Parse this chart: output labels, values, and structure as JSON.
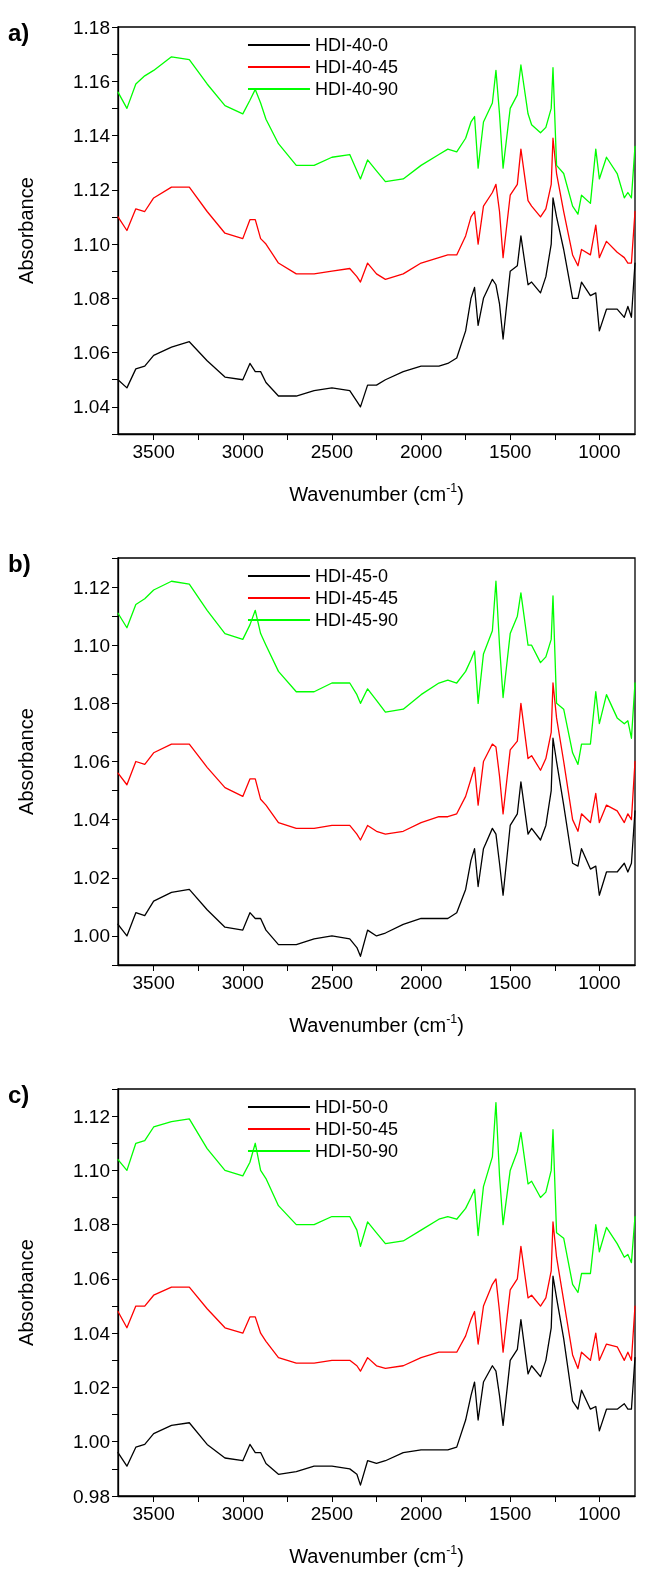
{
  "chart_data": [
    {
      "type": "line",
      "annotations": [
        "a)"
      ],
      "xlabel": "Wavenumber (cm$^{-1}$)",
      "ylabel": "Absorbance",
      "legend": "top",
      "grid": false,
      "marker": "none",
      "line_style": "solid",
      "xlim": [
        3700,
        800
      ],
      "xticks": [
        3500,
        {
          "value": 3250,
          "label": null
        },
        3000,
        {
          "value": 2750,
          "label": null
        },
        2500,
        {
          "value": 2250,
          "label": null
        },
        2000,
        {
          "value": 1750,
          "label": null
        },
        1500,
        {
          "value": 1250,
          "label": null
        },
        1000
      ],
      "ylim": [
        1.03,
        1.18
      ],
      "yticks": [
        {
          "value": 1.03,
          "label": null
        },
        {
          "value": 1.04,
          "label": "1.04"
        },
        {
          "value": 1.05,
          "label": null
        },
        {
          "value": 1.06,
          "label": "1.06"
        },
        {
          "value": 1.07,
          "label": null
        },
        {
          "value": 1.08,
          "label": "1.08"
        },
        {
          "value": 1.09,
          "label": null
        },
        {
          "value": 1.1,
          "label": "1.10"
        },
        {
          "value": 1.11,
          "label": null
        },
        {
          "value": 1.12,
          "label": "1.12"
        },
        {
          "value": 1.13,
          "label": null
        },
        {
          "value": 1.14,
          "label": "1.14"
        },
        {
          "value": 1.15,
          "label": null
        },
        {
          "value": 1.16,
          "label": "1.16"
        },
        {
          "value": 1.17,
          "label": null
        },
        {
          "value": 1.18,
          "label": "1.18"
        }
      ],
      "x": [
        3700,
        3650,
        3600,
        3550,
        3500,
        3400,
        3300,
        3200,
        3100,
        3000,
        2960,
        2930,
        2900,
        2870,
        2800,
        2700,
        2600,
        2500,
        2400,
        2360,
        2340,
        2300,
        2250,
        2200,
        2100,
        2000,
        1900,
        1850,
        1800,
        1750,
        1720,
        1700,
        1680,
        1650,
        1600,
        1580,
        1560,
        1540,
        1500,
        1460,
        1440,
        1400,
        1380,
        1330,
        1300,
        1270,
        1260,
        1240,
        1200,
        1150,
        1120,
        1100,
        1050,
        1020,
        1000,
        960,
        900,
        860,
        840,
        820,
        800
      ],
      "series": [
        {
          "name": "HDI-40-0",
          "color": "#000000",
          "values": [
            1.05,
            1.047,
            1.054,
            1.055,
            1.059,
            1.062,
            1.064,
            1.057,
            1.051,
            1.05,
            1.056,
            1.053,
            1.053,
            1.049,
            1.044,
            1.044,
            1.046,
            1.047,
            1.046,
            1.042,
            1.04,
            1.048,
            1.048,
            1.05,
            1.053,
            1.055,
            1.055,
            1.056,
            1.058,
            1.068,
            1.08,
            1.084,
            1.07,
            1.08,
            1.087,
            1.085,
            1.078,
            1.065,
            1.09,
            1.092,
            1.103,
            1.085,
            1.086,
            1.082,
            1.088,
            1.1,
            1.117,
            1.11,
            1.098,
            1.08,
            1.08,
            1.086,
            1.081,
            1.082,
            1.068,
            1.076,
            1.076,
            1.073,
            1.077,
            1.073,
            1.093
          ]
        },
        {
          "name": "HDI-40-45",
          "color": "#ff0000",
          "values": [
            1.11,
            1.105,
            1.113,
            1.112,
            1.117,
            1.121,
            1.121,
            1.112,
            1.104,
            1.102,
            1.109,
            1.109,
            1.102,
            1.1,
            1.093,
            1.089,
            1.089,
            1.09,
            1.091,
            1.088,
            1.086,
            1.093,
            1.089,
            1.087,
            1.089,
            1.093,
            1.095,
            1.096,
            1.096,
            1.103,
            1.11,
            1.112,
            1.1,
            1.114,
            1.119,
            1.122,
            1.112,
            1.095,
            1.118,
            1.122,
            1.135,
            1.116,
            1.114,
            1.11,
            1.113,
            1.122,
            1.139,
            1.126,
            1.112,
            1.096,
            1.092,
            1.098,
            1.096,
            1.107,
            1.095,
            1.101,
            1.097,
            1.095,
            1.093,
            1.093,
            1.112
          ]
        },
        {
          "name": "HDI-40-90",
          "color": "#00ff00",
          "values": [
            1.156,
            1.15,
            1.159,
            1.162,
            1.164,
            1.169,
            1.168,
            1.159,
            1.151,
            1.148,
            1.153,
            1.157,
            1.152,
            1.146,
            1.137,
            1.129,
            1.129,
            1.132,
            1.133,
            1.127,
            1.124,
            1.131,
            1.127,
            1.123,
            1.124,
            1.129,
            1.133,
            1.135,
            1.134,
            1.139,
            1.145,
            1.147,
            1.128,
            1.145,
            1.152,
            1.164,
            1.148,
            1.128,
            1.15,
            1.155,
            1.166,
            1.148,
            1.144,
            1.141,
            1.143,
            1.15,
            1.165,
            1.129,
            1.126,
            1.114,
            1.111,
            1.118,
            1.115,
            1.135,
            1.124,
            1.132,
            1.126,
            1.117,
            1.119,
            1.117,
            1.136
          ]
        }
      ]
    },
    {
      "type": "line",
      "annotations": [
        "b)"
      ],
      "xlabel": "Wavenumber (cm$^{-1}$)",
      "ylabel": "Absorbance",
      "legend": "top",
      "grid": false,
      "marker": "none",
      "line_style": "solid",
      "xlim": [
        3700,
        800
      ],
      "xticks": [
        3500,
        {
          "value": 3250,
          "label": null
        },
        3000,
        {
          "value": 2750,
          "label": null
        },
        2500,
        {
          "value": 2250,
          "label": null
        },
        2000,
        {
          "value": 1750,
          "label": null
        },
        1500,
        {
          "value": 1250,
          "label": null
        },
        1000
      ],
      "ylim": [
        0.99,
        1.13
      ],
      "yticks": [
        {
          "value": 0.99,
          "label": null
        },
        {
          "value": 1.0,
          "label": "1.00"
        },
        {
          "value": 1.01,
          "label": null
        },
        {
          "value": 1.02,
          "label": "1.02"
        },
        {
          "value": 1.03,
          "label": null
        },
        {
          "value": 1.04,
          "label": "1.04"
        },
        {
          "value": 1.05,
          "label": null
        },
        {
          "value": 1.06,
          "label": "1.06"
        },
        {
          "value": 1.07,
          "label": null
        },
        {
          "value": 1.08,
          "label": "1.08"
        },
        {
          "value": 1.09,
          "label": null
        },
        {
          "value": 1.1,
          "label": "1.10"
        },
        {
          "value": 1.11,
          "label": null
        },
        {
          "value": 1.12,
          "label": "1.12"
        },
        {
          "value": 1.13,
          "label": null
        }
      ],
      "x": [
        3700,
        3650,
        3600,
        3550,
        3500,
        3400,
        3300,
        3200,
        3100,
        3000,
        2960,
        2930,
        2900,
        2870,
        2800,
        2700,
        2600,
        2500,
        2400,
        2360,
        2340,
        2300,
        2250,
        2200,
        2100,
        2000,
        1900,
        1850,
        1800,
        1750,
        1720,
        1700,
        1680,
        1650,
        1600,
        1580,
        1560,
        1540,
        1500,
        1460,
        1440,
        1400,
        1380,
        1330,
        1300,
        1270,
        1260,
        1240,
        1200,
        1150,
        1120,
        1100,
        1050,
        1020,
        1000,
        960,
        900,
        860,
        840,
        820,
        800
      ],
      "series": [
        {
          "name": "HDI-45-0",
          "color": "#000000",
          "values": [
            1.004,
            1.0,
            1.008,
            1.007,
            1.012,
            1.015,
            1.016,
            1.009,
            1.003,
            1.002,
            1.008,
            1.006,
            1.006,
            1.002,
            0.997,
            0.997,
            0.999,
            1.0,
            0.999,
            0.996,
            0.993,
            1.002,
            1.0,
            1.001,
            1.004,
            1.006,
            1.006,
            1.006,
            1.008,
            1.016,
            1.026,
            1.03,
            1.017,
            1.03,
            1.037,
            1.035,
            1.025,
            1.014,
            1.038,
            1.042,
            1.053,
            1.035,
            1.037,
            1.033,
            1.038,
            1.05,
            1.068,
            1.06,
            1.045,
            1.025,
            1.024,
            1.03,
            1.023,
            1.024,
            1.014,
            1.022,
            1.022,
            1.025,
            1.022,
            1.025,
            1.043
          ]
        },
        {
          "name": "HDI-45-45",
          "color": "#ff0000",
          "values": [
            1.056,
            1.052,
            1.06,
            1.059,
            1.063,
            1.066,
            1.066,
            1.058,
            1.051,
            1.048,
            1.054,
            1.054,
            1.047,
            1.045,
            1.039,
            1.037,
            1.037,
            1.038,
            1.038,
            1.035,
            1.033,
            1.038,
            1.036,
            1.035,
            1.036,
            1.039,
            1.041,
            1.041,
            1.042,
            1.048,
            1.054,
            1.058,
            1.045,
            1.06,
            1.066,
            1.065,
            1.055,
            1.042,
            1.064,
            1.067,
            1.08,
            1.061,
            1.062,
            1.057,
            1.061,
            1.07,
            1.087,
            1.075,
            1.06,
            1.04,
            1.036,
            1.042,
            1.039,
            1.049,
            1.039,
            1.045,
            1.043,
            1.039,
            1.042,
            1.04,
            1.06
          ]
        },
        {
          "name": "HDI-45-90",
          "color": "#00ff00",
          "values": [
            1.111,
            1.106,
            1.114,
            1.116,
            1.119,
            1.122,
            1.121,
            1.112,
            1.104,
            1.102,
            1.107,
            1.112,
            1.104,
            1.1,
            1.091,
            1.084,
            1.084,
            1.087,
            1.087,
            1.083,
            1.08,
            1.085,
            1.081,
            1.077,
            1.078,
            1.083,
            1.087,
            1.088,
            1.087,
            1.091,
            1.095,
            1.098,
            1.08,
            1.097,
            1.105,
            1.122,
            1.1,
            1.082,
            1.104,
            1.11,
            1.118,
            1.1,
            1.1,
            1.094,
            1.096,
            1.102,
            1.117,
            1.08,
            1.078,
            1.063,
            1.059,
            1.066,
            1.066,
            1.084,
            1.073,
            1.083,
            1.075,
            1.073,
            1.074,
            1.068,
            1.087
          ]
        }
      ]
    },
    {
      "type": "line",
      "annotations": [
        "c)"
      ],
      "xlabel": "Wavenumber (cm$^{-1}$)",
      "ylabel": "Absorbance",
      "legend": "top",
      "grid": false,
      "marker": "none",
      "line_style": "solid",
      "xlim": [
        3700,
        800
      ],
      "xticks": [
        3500,
        {
          "value": 3250,
          "label": null
        },
        3000,
        {
          "value": 2750,
          "label": null
        },
        2500,
        {
          "value": 2250,
          "label": null
        },
        2000,
        {
          "value": 1750,
          "label": null
        },
        1500,
        {
          "value": 1250,
          "label": null
        },
        1000
      ],
      "ylim": [
        0.98,
        1.13
      ],
      "yticks": [
        {
          "value": 0.98,
          "label": "0.98"
        },
        {
          "value": 0.99,
          "label": null
        },
        {
          "value": 1.0,
          "label": "1.00"
        },
        {
          "value": 1.01,
          "label": null
        },
        {
          "value": 1.02,
          "label": "1.02"
        },
        {
          "value": 1.03,
          "label": null
        },
        {
          "value": 1.04,
          "label": "1.04"
        },
        {
          "value": 1.05,
          "label": null
        },
        {
          "value": 1.06,
          "label": "1.06"
        },
        {
          "value": 1.07,
          "label": null
        },
        {
          "value": 1.08,
          "label": "1.08"
        },
        {
          "value": 1.09,
          "label": null
        },
        {
          "value": 1.1,
          "label": "1.10"
        },
        {
          "value": 1.11,
          "label": null
        },
        {
          "value": 1.12,
          "label": "1.12"
        },
        {
          "value": 1.13,
          "label": null
        }
      ],
      "x": [
        3700,
        3650,
        3600,
        3550,
        3500,
        3400,
        3300,
        3200,
        3100,
        3000,
        2960,
        2930,
        2900,
        2870,
        2800,
        2700,
        2600,
        2500,
        2400,
        2360,
        2340,
        2300,
        2250,
        2200,
        2100,
        2000,
        1900,
        1850,
        1800,
        1750,
        1720,
        1700,
        1680,
        1650,
        1600,
        1580,
        1560,
        1540,
        1500,
        1460,
        1440,
        1400,
        1380,
        1330,
        1300,
        1270,
        1260,
        1240,
        1200,
        1150,
        1120,
        1100,
        1050,
        1020,
        1000,
        960,
        900,
        860,
        840,
        820,
        800
      ],
      "series": [
        {
          "name": "HDI-50-0",
          "color": "#000000",
          "values": [
            0.996,
            0.991,
            0.998,
            0.999,
            1.003,
            1.006,
            1.007,
            0.999,
            0.994,
            0.993,
            0.999,
            0.996,
            0.996,
            0.992,
            0.988,
            0.989,
            0.991,
            0.991,
            0.99,
            0.988,
            0.984,
            0.993,
            0.992,
            0.993,
            0.996,
            0.997,
            0.997,
            0.997,
            0.998,
            1.008,
            1.017,
            1.022,
            1.008,
            1.022,
            1.028,
            1.026,
            1.017,
            1.006,
            1.03,
            1.034,
            1.045,
            1.025,
            1.028,
            1.024,
            1.03,
            1.042,
            1.061,
            1.053,
            1.038,
            1.015,
            1.012,
            1.019,
            1.012,
            1.013,
            1.004,
            1.012,
            1.012,
            1.014,
            1.012,
            1.012,
            1.031
          ]
        },
        {
          "name": "HDI-50-45",
          "color": "#ff0000",
          "values": [
            1.048,
            1.042,
            1.05,
            1.05,
            1.054,
            1.057,
            1.057,
            1.049,
            1.042,
            1.04,
            1.046,
            1.046,
            1.04,
            1.037,
            1.031,
            1.029,
            1.029,
            1.03,
            1.03,
            1.028,
            1.026,
            1.031,
            1.028,
            1.027,
            1.028,
            1.031,
            1.033,
            1.033,
            1.033,
            1.039,
            1.045,
            1.048,
            1.036,
            1.05,
            1.058,
            1.06,
            1.048,
            1.033,
            1.056,
            1.06,
            1.072,
            1.053,
            1.054,
            1.05,
            1.053,
            1.063,
            1.081,
            1.068,
            1.052,
            1.032,
            1.027,
            1.033,
            1.03,
            1.04,
            1.03,
            1.036,
            1.035,
            1.03,
            1.033,
            1.03,
            1.05
          ]
        },
        {
          "name": "HDI-50-90",
          "color": "#00ff00",
          "values": [
            1.104,
            1.1,
            1.11,
            1.111,
            1.116,
            1.118,
            1.119,
            1.108,
            1.1,
            1.098,
            1.103,
            1.11,
            1.1,
            1.097,
            1.087,
            1.08,
            1.08,
            1.083,
            1.083,
            1.078,
            1.072,
            1.081,
            1.077,
            1.073,
            1.074,
            1.078,
            1.082,
            1.083,
            1.082,
            1.086,
            1.09,
            1.093,
            1.076,
            1.094,
            1.105,
            1.125,
            1.098,
            1.08,
            1.1,
            1.107,
            1.114,
            1.095,
            1.096,
            1.09,
            1.092,
            1.1,
            1.115,
            1.077,
            1.075,
            1.058,
            1.055,
            1.062,
            1.062,
            1.08,
            1.07,
            1.079,
            1.073,
            1.068,
            1.069,
            1.066,
            1.083
          ]
        }
      ]
    }
  ]
}
